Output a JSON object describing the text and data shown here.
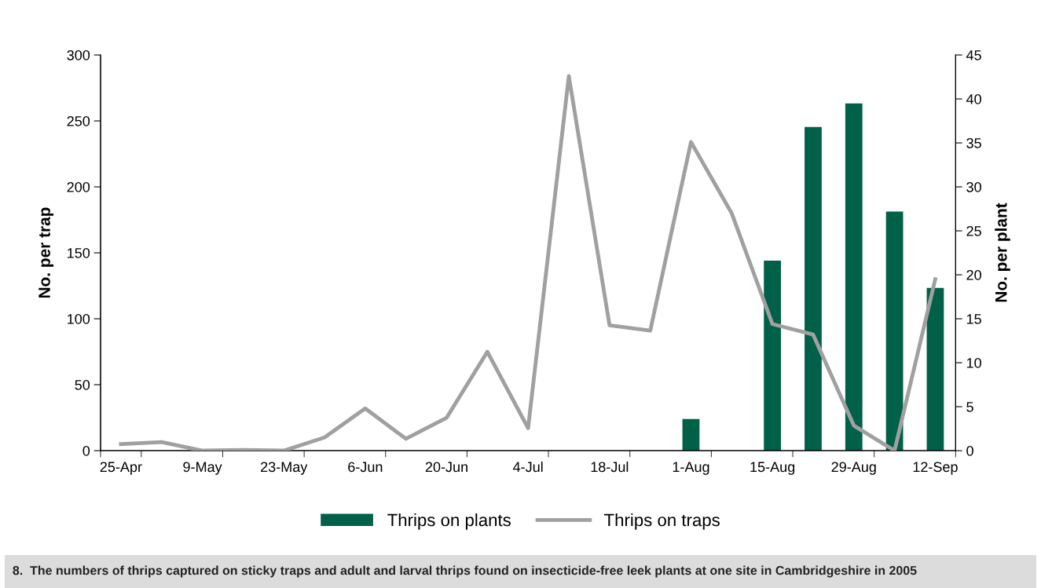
{
  "chart_data": {
    "type": "bar",
    "categories": [
      "25-Apr",
      null,
      "9-May",
      null,
      "23-May",
      null,
      "6-Jun",
      null,
      "20-Jun",
      null,
      "4-Jul",
      null,
      "18-Jul",
      null,
      "1-Aug",
      null,
      "15-Aug",
      null,
      "29-Aug",
      null,
      "12-Sep"
    ],
    "series": [
      {
        "name": "Thrips on plants",
        "axis": "y2",
        "color": "#006048",
        "values": [
          null,
          null,
          null,
          null,
          null,
          null,
          null,
          null,
          null,
          null,
          null,
          null,
          null,
          null,
          3.6,
          null,
          21.6,
          36.8,
          39.5,
          27.2,
          18.5
        ]
      },
      {
        "name": "Thrips on traps",
        "type": "line",
        "axis": "y",
        "color": "#a0a0a0",
        "values": [
          5,
          6.5,
          0,
          0.5,
          0,
          10,
          32,
          9,
          25,
          75,
          17,
          284,
          95,
          91,
          234,
          180,
          96,
          88,
          19,
          0,
          130
        ]
      }
    ],
    "ylabel": "No. per trap",
    "y2label": "No. per plant",
    "ylim": [
      0,
      300
    ],
    "yticks": [
      0,
      50,
      100,
      150,
      200,
      250,
      300
    ],
    "y2lim": [
      0,
      45
    ],
    "y2ticks": [
      0,
      5,
      10,
      15,
      20,
      25,
      30,
      35,
      40,
      45
    ],
    "legend": "bottom",
    "grid": false,
    "annotations": [
      "8.  The numbers of thrips captured on sticky traps and adult and larval thrips found on insecticide-free leek plants at one site in Cambridgeshire in 2005"
    ]
  }
}
